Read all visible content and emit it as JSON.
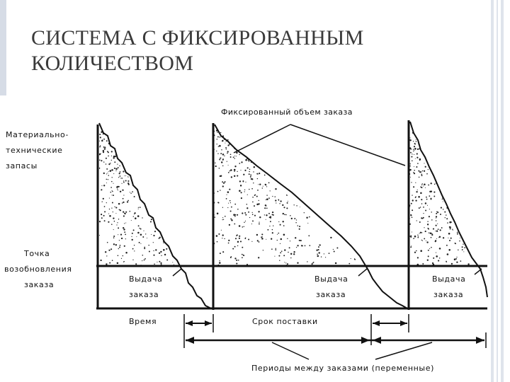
{
  "slide": {
    "title_lines": [
      "СИСТЕМА С ФИКСИРОВАННЫМ",
      "КОЛИЧЕСТВОМ"
    ]
  },
  "diagram": {
    "y_axis_label_lines": [
      "Материально-",
      "технические",
      "запасы"
    ],
    "reorder_point_label_lines": [
      "Точка",
      "возобновления",
      "заказа"
    ],
    "fixed_order_label": "Фиксированный объем заказа",
    "issue_label_lines": [
      "Выдача",
      "заказа"
    ],
    "time_label": "Время",
    "lead_time_label": "Срок поставки",
    "periods_label": "Периоды между заказами (переменные)",
    "colors": {
      "ink": "#111111",
      "stipple": "#222222",
      "title": "#3a3a3a"
    }
  }
}
